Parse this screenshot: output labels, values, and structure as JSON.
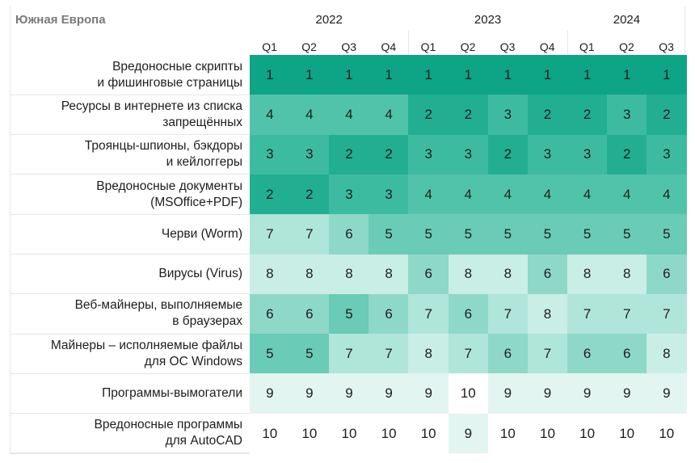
{
  "chart_data": {
    "type": "heatmap",
    "title": "Южная Европа",
    "years": [
      {
        "label": "2022",
        "span": 4
      },
      {
        "label": "2023",
        "span": 4
      },
      {
        "label": "2024",
        "span": 3
      }
    ],
    "columns": [
      "Q1",
      "Q2",
      "Q3",
      "Q4",
      "Q1",
      "Q2",
      "Q3",
      "Q4",
      "Q1",
      "Q2",
      "Q3"
    ],
    "rows": [
      {
        "label": [
          "Вредоносные скрипты",
          "и фишинговые страницы"
        ],
        "values": [
          1,
          1,
          1,
          1,
          1,
          1,
          1,
          1,
          1,
          1,
          1
        ]
      },
      {
        "label": [
          "Ресурсы в интернете из списка",
          "запрещённых"
        ],
        "values": [
          4,
          4,
          4,
          4,
          2,
          2,
          3,
          2,
          2,
          3,
          2
        ]
      },
      {
        "label": [
          "Троянцы-шпионы, бэкдоры",
          "и кейлоггеры"
        ],
        "values": [
          3,
          3,
          2,
          2,
          3,
          3,
          2,
          3,
          3,
          2,
          3
        ]
      },
      {
        "label": [
          "Вредоносные документы",
          "(MSOffice+PDF)"
        ],
        "values": [
          2,
          2,
          3,
          3,
          4,
          4,
          4,
          4,
          4,
          4,
          4
        ]
      },
      {
        "label": [
          "Черви (Worm)"
        ],
        "values": [
          7,
          7,
          6,
          5,
          5,
          5,
          5,
          5,
          5,
          5,
          5
        ]
      },
      {
        "label": [
          "Вирусы (Virus)"
        ],
        "values": [
          8,
          8,
          8,
          8,
          6,
          8,
          8,
          6,
          8,
          8,
          6
        ]
      },
      {
        "label": [
          "Веб-майнеры, выполняемые",
          "в браузерах"
        ],
        "values": [
          6,
          6,
          5,
          6,
          7,
          6,
          7,
          8,
          7,
          7,
          7
        ]
      },
      {
        "label": [
          "Майнеры – исполняемые файлы",
          "для ОС Windows"
        ],
        "values": [
          5,
          5,
          7,
          7,
          8,
          7,
          6,
          7,
          6,
          6,
          8
        ]
      },
      {
        "label": [
          "Программы-вымогатели"
        ],
        "values": [
          9,
          9,
          9,
          9,
          9,
          10,
          9,
          9,
          9,
          9,
          9
        ]
      },
      {
        "label": [
          "Вредоносные программы",
          "для AutoCAD"
        ],
        "values": [
          10,
          10,
          10,
          10,
          10,
          9,
          10,
          10,
          10,
          10,
          10
        ]
      }
    ],
    "rank_colors": {
      "1": "#0ea486",
      "2": "#22ae91",
      "3": "#3dbba1",
      "4": "#52c3ab",
      "5": "#6acbb6",
      "6": "#8ed8c8",
      "7": "#b0e5da",
      "8": "#c9eee6",
      "9": "#e2f5f1",
      "10": "#ffffff"
    }
  }
}
